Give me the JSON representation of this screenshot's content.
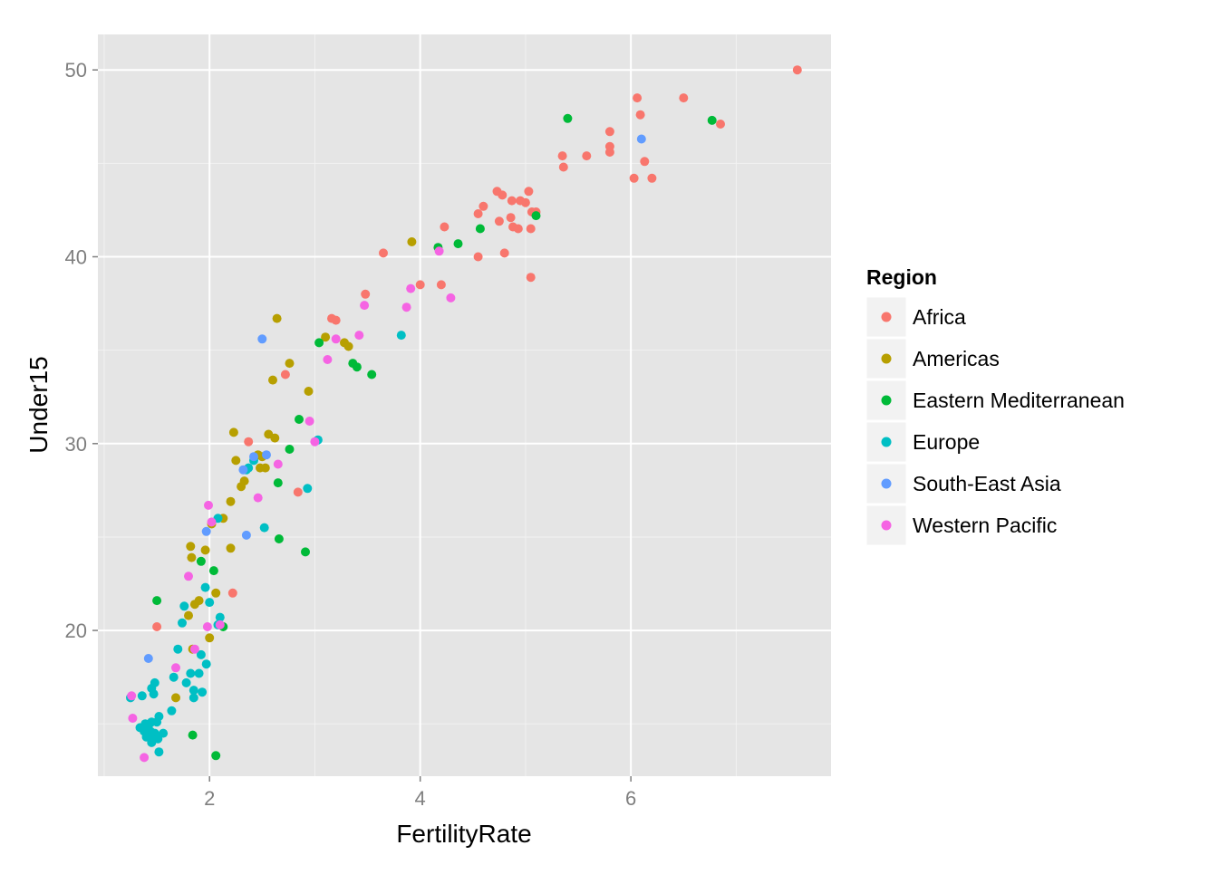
{
  "chart_data": {
    "type": "scatter",
    "xlabel": "FertilityRate",
    "ylabel": "Under15",
    "xlim": [
      0.94,
      7.9
    ],
    "ylim": [
      12.2,
      51.9
    ],
    "x_ticks": [
      2,
      4,
      6
    ],
    "x_tick_labels": [
      "2",
      "4",
      "6"
    ],
    "y_ticks": [
      20,
      30,
      40,
      50
    ],
    "y_tick_labels": [
      "20",
      "30",
      "40",
      "50"
    ],
    "grid": true,
    "legend": {
      "title": "Region",
      "position": "right"
    },
    "series": [
      {
        "name": "Africa",
        "color": "#F8766D",
        "points": [
          [
            7.58,
            50.0
          ],
          [
            6.06,
            48.5
          ],
          [
            6.5,
            48.5
          ],
          [
            6.09,
            47.6
          ],
          [
            6.85,
            47.1
          ],
          [
            5.8,
            46.7
          ],
          [
            6.13,
            45.1
          ],
          [
            5.8,
            45.9
          ],
          [
            5.8,
            45.6
          ],
          [
            5.58,
            45.4
          ],
          [
            5.35,
            45.4
          ],
          [
            5.36,
            44.8
          ],
          [
            6.03,
            44.2
          ],
          [
            6.2,
            44.2
          ],
          [
            4.73,
            43.5
          ],
          [
            4.78,
            43.3
          ],
          [
            5.03,
            43.5
          ],
          [
            4.87,
            43.0
          ],
          [
            4.95,
            43.0
          ],
          [
            5.0,
            42.9
          ],
          [
            4.6,
            42.7
          ],
          [
            4.55,
            42.3
          ],
          [
            4.86,
            42.1
          ],
          [
            5.06,
            42.4
          ],
          [
            5.1,
            42.4
          ],
          [
            4.75,
            41.9
          ],
          [
            4.88,
            41.6
          ],
          [
            4.93,
            41.5
          ],
          [
            5.05,
            41.5
          ],
          [
            4.23,
            41.6
          ],
          [
            4.55,
            40.0
          ],
          [
            4.8,
            40.2
          ],
          [
            3.65,
            40.2
          ],
          [
            4.0,
            38.5
          ],
          [
            4.2,
            38.5
          ],
          [
            5.05,
            38.9
          ],
          [
            3.48,
            38.0
          ],
          [
            3.16,
            36.7
          ],
          [
            3.2,
            36.6
          ],
          [
            2.72,
            33.7
          ],
          [
            2.37,
            30.1
          ],
          [
            2.84,
            27.4
          ],
          [
            1.5,
            20.2
          ],
          [
            2.22,
            22.0
          ]
        ]
      },
      {
        "name": "Americas",
        "color": "#B79F00",
        "points": [
          [
            3.92,
            40.8
          ],
          [
            2.64,
            36.7
          ],
          [
            3.1,
            35.7
          ],
          [
            3.28,
            35.4
          ],
          [
            3.32,
            35.2
          ],
          [
            2.76,
            34.3
          ],
          [
            2.6,
            33.4
          ],
          [
            2.94,
            32.8
          ],
          [
            2.23,
            30.6
          ],
          [
            2.56,
            30.5
          ],
          [
            2.62,
            30.3
          ],
          [
            2.25,
            29.1
          ],
          [
            2.46,
            29.4
          ],
          [
            2.5,
            29.3
          ],
          [
            2.48,
            28.7
          ],
          [
            2.53,
            28.7
          ],
          [
            2.33,
            28.0
          ],
          [
            2.3,
            27.7
          ],
          [
            2.2,
            26.9
          ],
          [
            2.13,
            26.0
          ],
          [
            2.02,
            25.7
          ],
          [
            1.82,
            24.5
          ],
          [
            1.83,
            23.9
          ],
          [
            1.96,
            24.3
          ],
          [
            2.2,
            24.4
          ],
          [
            2.06,
            22.0
          ],
          [
            1.9,
            21.6
          ],
          [
            1.86,
            21.4
          ],
          [
            1.8,
            20.8
          ],
          [
            2.0,
            19.6
          ],
          [
            1.84,
            19.0
          ],
          [
            1.68,
            16.4
          ]
        ]
      },
      {
        "name": "Eastern Mediterranean",
        "color": "#00BA38",
        "points": [
          [
            5.4,
            47.4
          ],
          [
            6.77,
            47.3
          ],
          [
            5.1,
            42.2
          ],
          [
            4.57,
            41.5
          ],
          [
            4.36,
            40.7
          ],
          [
            4.17,
            40.5
          ],
          [
            3.04,
            35.4
          ],
          [
            3.36,
            34.3
          ],
          [
            3.4,
            34.1
          ],
          [
            3.54,
            33.7
          ],
          [
            2.85,
            31.3
          ],
          [
            2.76,
            29.7
          ],
          [
            2.65,
            27.9
          ],
          [
            2.66,
            24.9
          ],
          [
            2.91,
            24.2
          ],
          [
            1.92,
            23.7
          ],
          [
            2.04,
            23.2
          ],
          [
            1.5,
            21.6
          ],
          [
            2.13,
            20.2
          ],
          [
            1.84,
            14.4
          ],
          [
            2.06,
            13.3
          ]
        ]
      },
      {
        "name": "Europe",
        "color": "#00BFC4",
        "points": [
          [
            3.82,
            35.8
          ],
          [
            3.03,
            30.2
          ],
          [
            2.93,
            27.6
          ],
          [
            2.35,
            28.6
          ],
          [
            2.42,
            29.1
          ],
          [
            2.37,
            28.7
          ],
          [
            2.52,
            25.5
          ],
          [
            2.08,
            26.0
          ],
          [
            2.1,
            20.7
          ],
          [
            2.08,
            20.3
          ],
          [
            1.96,
            22.3
          ],
          [
            2.0,
            21.5
          ],
          [
            1.76,
            21.3
          ],
          [
            1.74,
            20.4
          ],
          [
            1.7,
            19.0
          ],
          [
            1.92,
            18.7
          ],
          [
            1.97,
            18.2
          ],
          [
            1.66,
            17.5
          ],
          [
            1.78,
            17.2
          ],
          [
            1.82,
            17.7
          ],
          [
            1.9,
            17.7
          ],
          [
            1.85,
            16.8
          ],
          [
            1.93,
            16.7
          ],
          [
            1.85,
            16.4
          ],
          [
            1.64,
            15.7
          ],
          [
            1.48,
            17.2
          ],
          [
            1.45,
            16.9
          ],
          [
            1.47,
            16.6
          ],
          [
            1.36,
            16.5
          ],
          [
            1.25,
            16.4
          ],
          [
            1.52,
            15.4
          ],
          [
            1.5,
            15.1
          ],
          [
            1.45,
            15.1
          ],
          [
            1.39,
            15.0
          ],
          [
            1.42,
            14.9
          ],
          [
            1.34,
            14.8
          ],
          [
            1.38,
            14.6
          ],
          [
            1.44,
            14.6
          ],
          [
            1.48,
            14.5
          ],
          [
            1.56,
            14.5
          ],
          [
            1.4,
            14.3
          ],
          [
            1.46,
            14.2
          ],
          [
            1.51,
            14.2
          ],
          [
            1.45,
            14.0
          ],
          [
            1.52,
            13.5
          ]
        ]
      },
      {
        "name": "South-East Asia",
        "color": "#619CFF",
        "points": [
          [
            6.1,
            46.3
          ],
          [
            2.5,
            35.6
          ],
          [
            2.54,
            29.4
          ],
          [
            2.42,
            29.3
          ],
          [
            2.32,
            28.6
          ],
          [
            1.97,
            25.3
          ],
          [
            2.35,
            25.1
          ],
          [
            1.42,
            18.5
          ]
        ]
      },
      {
        "name": "Western Pacific",
        "color": "#F564E3",
        "points": [
          [
            4.18,
            40.3
          ],
          [
            3.91,
            38.3
          ],
          [
            4.29,
            37.8
          ],
          [
            3.47,
            37.4
          ],
          [
            3.87,
            37.3
          ],
          [
            3.42,
            35.8
          ],
          [
            3.2,
            35.6
          ],
          [
            3.12,
            34.5
          ],
          [
            2.95,
            31.2
          ],
          [
            3.0,
            30.1
          ],
          [
            2.65,
            28.9
          ],
          [
            2.46,
            27.1
          ],
          [
            1.99,
            26.7
          ],
          [
            2.02,
            25.8
          ],
          [
            1.8,
            22.9
          ],
          [
            1.98,
            20.2
          ],
          [
            2.1,
            20.3
          ],
          [
            1.86,
            19.0
          ],
          [
            1.68,
            18.0
          ],
          [
            1.26,
            16.5
          ],
          [
            1.27,
            15.3
          ],
          [
            1.38,
            13.2
          ]
        ]
      }
    ]
  }
}
